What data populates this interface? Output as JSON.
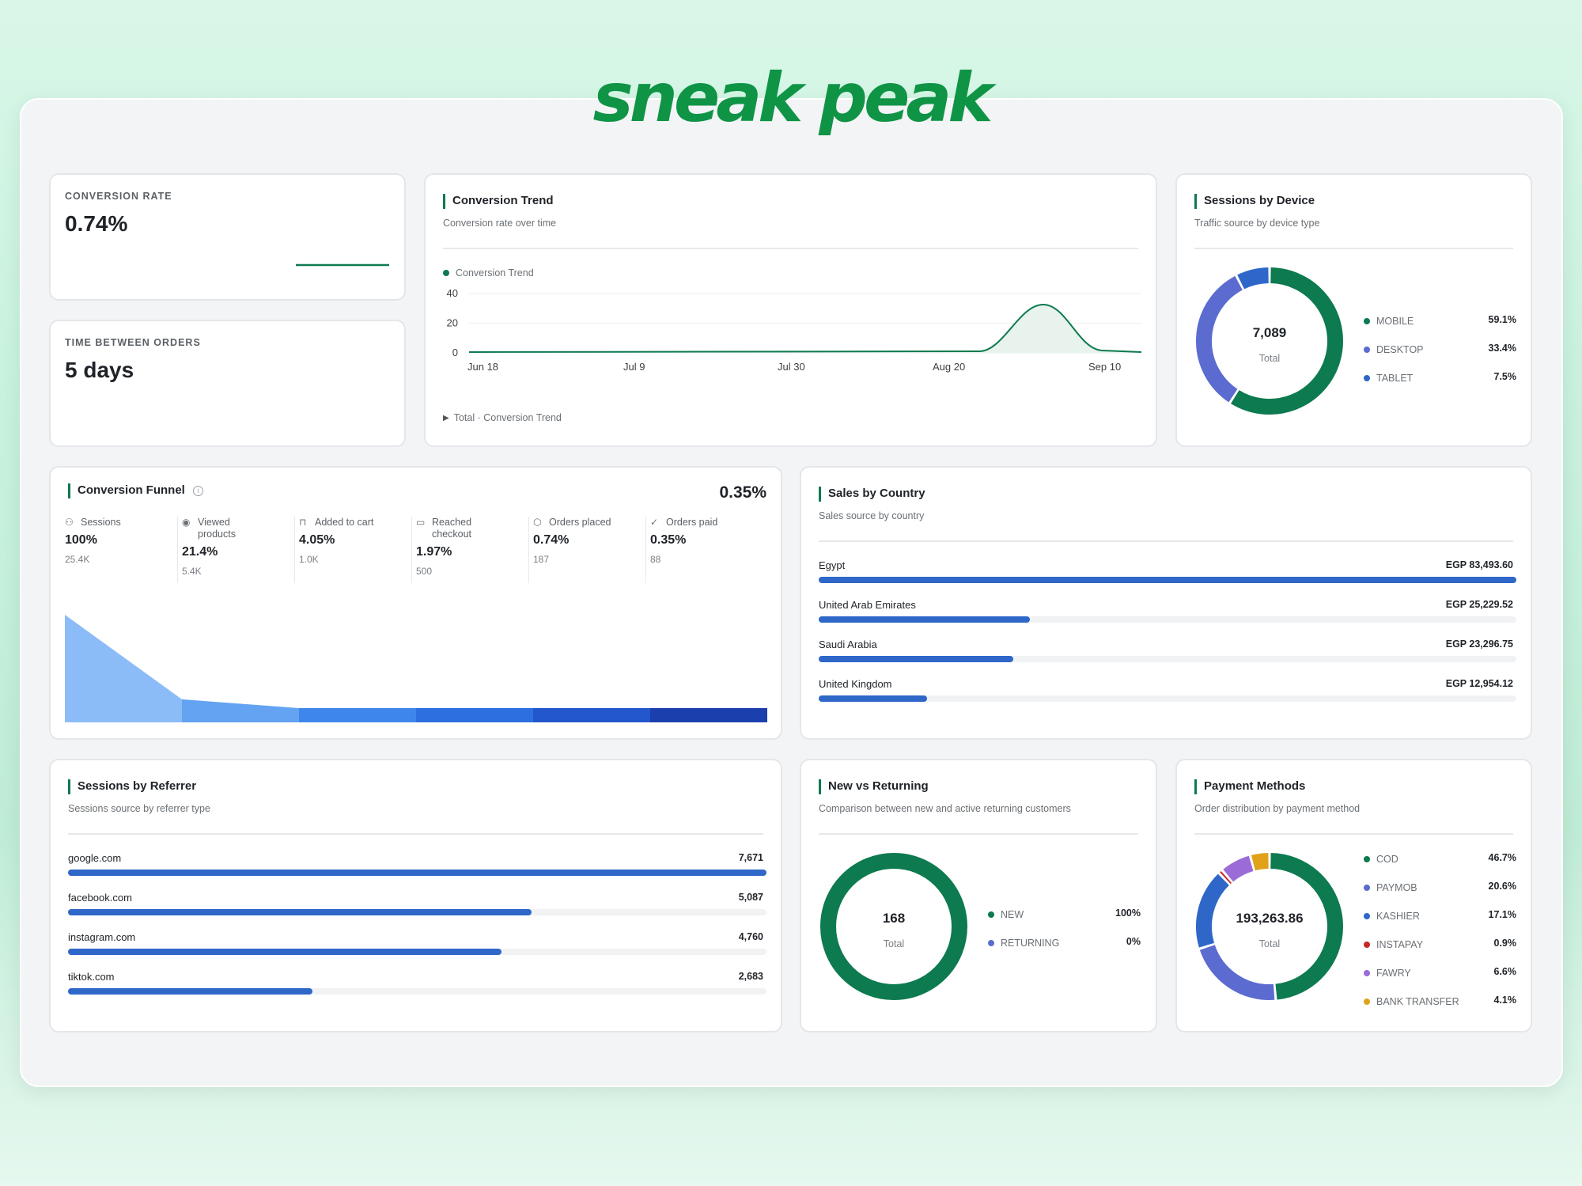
{
  "brand": "sneak peak",
  "conversion_rate": {
    "label": "CONVERSION RATE",
    "value": "0.74%"
  },
  "time_between_orders": {
    "label": "TIME BETWEEN ORDERS",
    "value": "5 days"
  },
  "conversion_trend": {
    "title": "Conversion Trend",
    "subtitle": "Conversion rate over time",
    "legend": "Conversion Trend",
    "footer": "Total · Conversion Trend",
    "chart_data": {
      "type": "area",
      "x_ticks": [
        "Jun 18",
        "Jul 9",
        "Jul 30",
        "Aug 20",
        "Sep 10"
      ],
      "y_ticks": [
        "0",
        "20",
        "40"
      ],
      "ylim": [
        0,
        40
      ],
      "series": [
        {
          "name": "Conversion Trend",
          "color": "#0d7a4f"
        }
      ]
    }
  },
  "sessions_by_device": {
    "title": "Sessions by Device",
    "subtitle": "Traffic source by device type",
    "total_value": "7,089",
    "total_label": "Total",
    "items": [
      {
        "label": "MOBILE",
        "pct": "59.1%",
        "value": 59.1,
        "color": "#0d7a4f"
      },
      {
        "label": "DESKTOP",
        "pct": "33.4%",
        "value": 33.4,
        "color": "#5b6bd0"
      },
      {
        "label": "TABLET",
        "pct": "7.5%",
        "value": 7.5,
        "color": "#2f67c9"
      }
    ]
  },
  "conversion_funnel": {
    "title": "Conversion Funnel",
    "overall": "0.35%",
    "steps": [
      {
        "icon": "users-icon",
        "glyph": "⚇",
        "label": "Sessions",
        "pct": "100%",
        "count": "25.4K",
        "value": 100,
        "color": "#8cbcf7"
      },
      {
        "icon": "eye-icon",
        "glyph": "◉",
        "label": "Viewed products",
        "pct": "21.4%",
        "count": "5.4K",
        "value": 21.4,
        "color": "#63a3f2"
      },
      {
        "icon": "lock-icon",
        "glyph": "⊓",
        "label": "Added to cart",
        "pct": "4.05%",
        "count": "1.0K",
        "value": 4.05,
        "color": "#3f86ec"
      },
      {
        "icon": "card-icon",
        "glyph": "▭",
        "label": "Reached checkout",
        "pct": "1.97%",
        "count": "500",
        "value": 1.97,
        "color": "#2e6fe0"
      },
      {
        "icon": "box-icon",
        "glyph": "⬡",
        "label": "Orders placed",
        "pct": "0.74%",
        "count": "187",
        "value": 0.74,
        "color": "#2357cc"
      },
      {
        "icon": "check-circle-icon",
        "glyph": "✓",
        "label": "Orders paid",
        "pct": "0.35%",
        "count": "88",
        "value": 0.35,
        "color": "#1c3fae"
      }
    ]
  },
  "sales_by_country": {
    "title": "Sales by Country",
    "subtitle": "Sales source by country",
    "items": [
      {
        "label": "Egypt",
        "display": "EGP 83,493.60",
        "value": 83493.6
      },
      {
        "label": "United Arab Emirates",
        "display": "EGP 25,229.52",
        "value": 25229.52
      },
      {
        "label": "Saudi Arabia",
        "display": "EGP 23,296.75",
        "value": 23296.75
      },
      {
        "label": "United Kingdom",
        "display": "EGP 12,954.12",
        "value": 12954.12
      }
    ]
  },
  "sessions_by_referrer": {
    "title": "Sessions by Referrer",
    "subtitle": "Sessions source by referrer type",
    "items": [
      {
        "label": "google.com",
        "display": "7,671",
        "value": 7671
      },
      {
        "label": "facebook.com",
        "display": "5,087",
        "value": 5087
      },
      {
        "label": "instagram.com",
        "display": "4,760",
        "value": 4760
      },
      {
        "label": "tiktok.com",
        "display": "2,683",
        "value": 2683
      }
    ]
  },
  "new_vs_returning": {
    "title": "New vs Returning",
    "subtitle": "Comparison between new and active returning customers",
    "total_value": "168",
    "total_label": "Total",
    "items": [
      {
        "label": "NEW",
        "pct": "100%",
        "value": 100,
        "color": "#0d7a4f"
      },
      {
        "label": "RETURNING",
        "pct": "0%",
        "value": 0,
        "color": "#5b6bd0"
      }
    ]
  },
  "payment_methods": {
    "title": "Payment Methods",
    "subtitle": "Order distribution by payment method",
    "total_value": "193,263.86",
    "total_label": "Total",
    "items": [
      {
        "label": "COD",
        "pct": "46.7%",
        "value": 46.7,
        "color": "#0d7a4f"
      },
      {
        "label": "PAYMOB",
        "pct": "20.6%",
        "value": 20.6,
        "color": "#5b6bd0"
      },
      {
        "label": "KASHIER",
        "pct": "17.1%",
        "value": 17.1,
        "color": "#2f67c9"
      },
      {
        "label": "INSTAPAY",
        "pct": "0.9%",
        "value": 0.9,
        "color": "#c62828"
      },
      {
        "label": "FAWRY",
        "pct": "6.6%",
        "value": 6.6,
        "color": "#9b6bd8"
      },
      {
        "label": "BANK TRANSFER",
        "pct": "4.1%",
        "value": 4.1,
        "color": "#e0a21a"
      }
    ]
  }
}
